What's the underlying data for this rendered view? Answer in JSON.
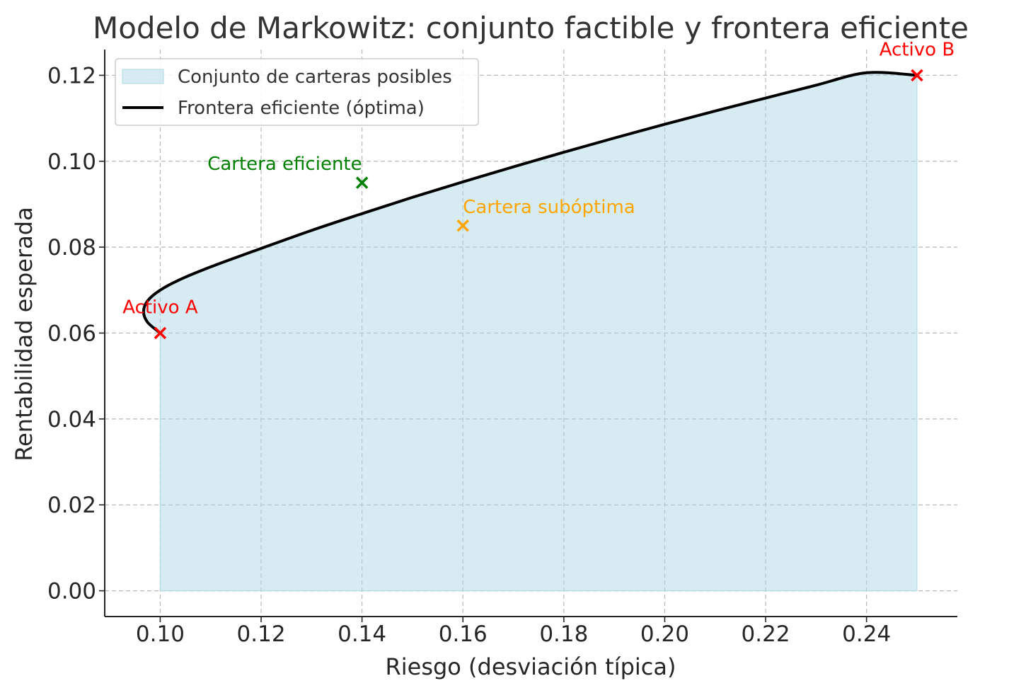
{
  "chart_data": {
    "type": "line",
    "title": "Modelo de Markowitz: conjunto factible y frontera eficiente",
    "xlabel": "Riesgo (desviación típica)",
    "ylabel": "Rentabilidad esperada",
    "xlim": [
      0.089,
      0.258
    ],
    "ylim": [
      -0.006,
      0.126
    ],
    "xticks": [
      0.1,
      0.12,
      0.14,
      0.16,
      0.18,
      0.2,
      0.22,
      0.24
    ],
    "yticks": [
      0.0,
      0.02,
      0.04,
      0.06,
      0.08,
      0.1,
      0.12
    ],
    "xtick_labels": [
      "0.10",
      "0.12",
      "0.14",
      "0.16",
      "0.18",
      "0.20",
      "0.22",
      "0.24"
    ],
    "ytick_labels": [
      "0.00",
      "0.02",
      "0.04",
      "0.06",
      "0.08",
      "0.10",
      "0.12"
    ],
    "grid": true,
    "legend_position": "top-left",
    "legend": [
      {
        "label": "Conjunto de carteras posibles",
        "kind": "area",
        "color": "#add8e6"
      },
      {
        "label": "Frontera eficiente (óptima)",
        "kind": "line",
        "color": "#000000"
      }
    ],
    "frontier": {
      "name": "Frontera eficiente (óptima)",
      "color": "#000000",
      "x": [
        0.1,
        0.0975,
        0.0967,
        0.0975,
        0.1,
        0.104,
        0.11,
        0.12,
        0.13,
        0.14,
        0.15,
        0.16,
        0.17,
        0.18,
        0.19,
        0.2,
        0.21,
        0.22,
        0.23,
        0.24,
        0.25
      ],
      "y": [
        0.06,
        0.0625,
        0.065,
        0.0675,
        0.07,
        0.0725,
        0.0754,
        0.0797,
        0.0839,
        0.0878,
        0.0916,
        0.0952,
        0.0987,
        0.1021,
        0.1054,
        0.1086,
        0.1117,
        0.1147,
        0.1177,
        0.1206,
        0.12
      ]
    },
    "feasible_area": {
      "name": "Conjunto de carteras posibles",
      "color": "#add8e6"
    },
    "points": [
      {
        "label": "Activo A",
        "x": 0.1,
        "y": 0.06,
        "color": "#ff0000",
        "label_pos": "above"
      },
      {
        "label": "Activo B",
        "x": 0.25,
        "y": 0.12,
        "color": "#ff0000",
        "label_pos": "above"
      },
      {
        "label": "Cartera eficiente",
        "x": 0.14,
        "y": 0.095,
        "color": "#008000",
        "label_pos": "above-left"
      },
      {
        "label": "Cartera subóptima",
        "x": 0.16,
        "y": 0.085,
        "color": "#ffa500",
        "label_pos": "above-right"
      }
    ]
  }
}
